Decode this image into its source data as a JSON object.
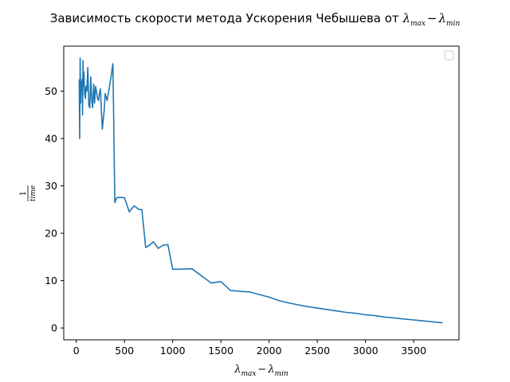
{
  "chart_data": {
    "type": "line",
    "title": {
      "prefix": "Зависимость скорости метода Ускорения Чебышева от ",
      "math_lambda": "λ",
      "sub_max": "max",
      "minus": "−",
      "sub_min": "min"
    },
    "xlabel": {
      "lambda": "λ",
      "sub_max": "max",
      "minus": "−",
      "sub_min": "min"
    },
    "ylabel": {
      "numerator": "1",
      "denominator": "time"
    },
    "xlim": [
      -130,
      3970
    ],
    "ylim": [
      -2.5,
      59.5
    ],
    "xticks": [
      0,
      500,
      1000,
      1500,
      2000,
      2500,
      3000,
      3500
    ],
    "yticks": [
      0,
      10,
      20,
      30,
      40,
      50
    ],
    "grid": false,
    "legend": "top-right",
    "series": [
      {
        "color": "#1f77b4",
        "x": [
          30,
          35,
          40,
          45,
          50,
          55,
          60,
          65,
          70,
          75,
          80,
          85,
          90,
          95,
          100,
          110,
          120,
          130,
          140,
          150,
          160,
          170,
          180,
          190,
          200,
          210,
          220,
          230,
          240,
          250,
          260,
          270,
          280,
          290,
          300,
          320,
          340,
          360,
          380,
          400,
          420,
          450,
          500,
          550,
          600,
          650,
          680,
          720,
          760,
          800,
          850,
          900,
          950,
          1000,
          1050,
          1200,
          1300,
          1400,
          1500,
          1600,
          1800,
          2000,
          2100,
          2200,
          2300,
          2400,
          2500,
          2600,
          2700,
          2800,
          2900,
          3000,
          3100,
          3200,
          3300,
          3400,
          3500,
          3600,
          3700,
          3800
        ],
        "y": [
          52.5,
          40.0,
          57.0,
          47.5,
          52.0,
          50.5,
          52.5,
          45.0,
          56.5,
          51.0,
          54.0,
          50.0,
          49.0,
          48.5,
          51.0,
          50.0,
          55.0,
          47.0,
          46.5,
          53.0,
          48.0,
          46.5,
          51.5,
          47.5,
          51.0,
          50.0,
          48.5,
          48.0,
          49.5,
          50.5,
          46.0,
          42.0,
          44.0,
          46.0,
          49.5,
          48.0,
          50.5,
          53.0,
          55.8,
          26.5,
          27.5,
          27.6,
          27.5,
          24.5,
          25.8,
          25.0,
          25.0,
          17.0,
          17.5,
          18.2,
          16.8,
          17.5,
          17.6,
          12.4,
          12.4,
          12.5,
          11.0,
          9.5,
          9.8,
          7.9,
          7.6,
          6.5,
          5.8,
          5.3,
          4.9,
          4.5,
          4.2,
          3.9,
          3.6,
          3.3,
          3.1,
          2.8,
          2.6,
          2.3,
          2.1,
          1.9,
          1.7,
          1.5,
          1.3,
          1.1
        ]
      }
    ]
  }
}
